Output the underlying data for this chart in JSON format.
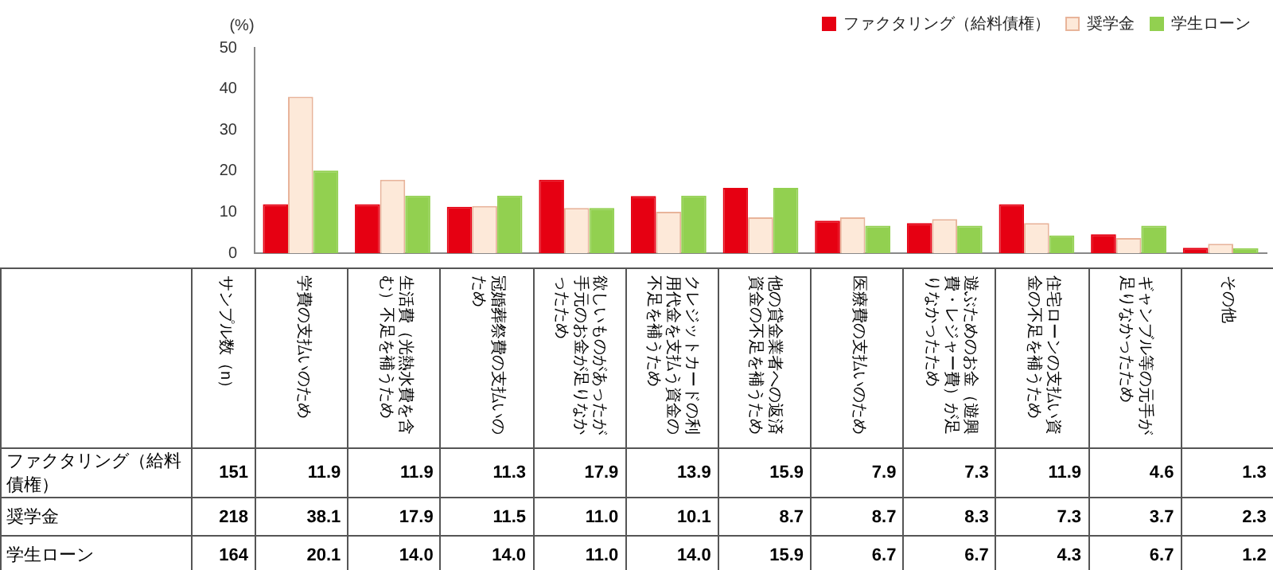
{
  "chart_data": {
    "type": "bar",
    "ylabel": "(%)",
    "categories": [
      "学費の支払いのため",
      "生活費（光熱水費を含む）不足を補うため",
      "冠婚葬祭費の支払いのため",
      "欲しいものがあったが手元のお金が足りなかったため",
      "クレジットカードの利用代金を支払う資金の不足を補うため",
      "他の貸金業者への返済資金の不足を補うため",
      "医療費の支払いのため",
      "遊ぶためのお金（遊興費・レジャー費）が足りなかったため",
      "住宅ローンの支払い資金の不足を補うため",
      "ギャンブル等の元手が足りなかったため",
      "その他"
    ],
    "series": [
      {
        "name": "ファクタリング（給料債権）",
        "color": "#e60012",
        "values": [
          11.9,
          11.9,
          11.3,
          17.9,
          13.9,
          15.9,
          7.9,
          7.3,
          11.9,
          4.6,
          1.3
        ],
        "value_labels": [
          "11.9",
          "11.9",
          "11.3",
          "17.9",
          "13.9",
          "15.9",
          "7.9",
          "7.3",
          "11.9",
          "4.6",
          "1.3"
        ]
      },
      {
        "name": "奨学金",
        "color": "#fde9d9",
        "values": [
          38.1,
          17.9,
          11.5,
          11.0,
          10.1,
          8.7,
          8.7,
          8.3,
          7.3,
          3.7,
          2.3
        ],
        "value_labels": [
          "38.1",
          "17.9",
          "11.5",
          "11.0",
          "10.1",
          "8.7",
          "8.7",
          "8.3",
          "7.3",
          "3.7",
          "2.3"
        ]
      },
      {
        "name": "学生ローン",
        "color": "#92d050",
        "values": [
          20.1,
          14.0,
          14.0,
          11.0,
          14.0,
          15.9,
          6.7,
          6.7,
          4.3,
          6.7,
          1.2
        ],
        "value_labels": [
          "20.1",
          "14.0",
          "14.0",
          "11.0",
          "14.0",
          "15.9",
          "6.7",
          "6.7",
          "4.3",
          "6.7",
          "1.2"
        ]
      }
    ],
    "ylim": [
      0,
      50
    ],
    "yticks": [
      0,
      10,
      20,
      30,
      40,
      50
    ],
    "grid": false,
    "legend": "top right",
    "annotations": [
      "サンプル数（n）",
      "151",
      "218",
      "164"
    ]
  }
}
